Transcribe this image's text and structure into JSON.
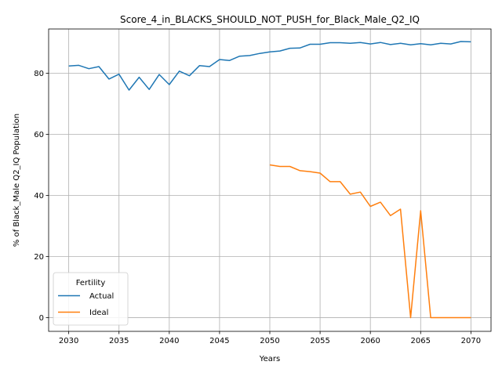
{
  "chart_data": {
    "type": "line",
    "title": "Score_4_in_BLACKS_SHOULD_NOT_PUSH_for_Black_Male_Q2_IQ",
    "xlabel": "Years",
    "ylabel": "% of Black_Male Q2_IQ Population",
    "xlim": [
      2028,
      2072
    ],
    "ylim": [
      -4.5,
      94.5
    ],
    "xticks": [
      2030,
      2035,
      2040,
      2045,
      2050,
      2055,
      2060,
      2065,
      2070
    ],
    "yticks": [
      0,
      20,
      40,
      60,
      80
    ],
    "grid": true,
    "legend": {
      "title": "Fertility",
      "position": "lower-left"
    },
    "series": [
      {
        "name": "Actual",
        "color": "#1f77b4",
        "x": [
          2030,
          2031,
          2032,
          2033,
          2034,
          2035,
          2036,
          2037,
          2038,
          2039,
          2040,
          2041,
          2042,
          2043,
          2044,
          2045,
          2046,
          2047,
          2048,
          2049,
          2050,
          2051,
          2052,
          2053,
          2054,
          2055,
          2056,
          2057,
          2058,
          2059,
          2060,
          2061,
          2062,
          2063,
          2064,
          2065,
          2066,
          2067,
          2068,
          2069,
          2070
        ],
        "values": [
          82.4,
          82.6,
          81.5,
          82.2,
          78.1,
          79.7,
          74.5,
          78.7,
          74.7,
          79.6,
          76.3,
          80.7,
          79.2,
          82.5,
          82.2,
          84.5,
          84.2,
          85.6,
          85.8,
          86.5,
          87.0,
          87.3,
          88.2,
          88.3,
          89.5,
          89.5,
          90.0,
          90.0,
          89.8,
          90.1,
          89.6,
          90.1,
          89.4,
          89.8,
          89.3,
          89.7,
          89.3,
          89.8,
          89.6,
          90.4,
          90.3
        ]
      },
      {
        "name": "Ideal",
        "color": "#ff7f0e",
        "x": [
          2050,
          2051,
          2052,
          2053,
          2054,
          2055,
          2056,
          2057,
          2058,
          2059,
          2060,
          2061,
          2062,
          2063,
          2064,
          2065,
          2066,
          2067,
          2068,
          2069,
          2070
        ],
        "values": [
          50.0,
          49.5,
          49.5,
          48.1,
          47.8,
          47.3,
          44.5,
          44.5,
          40.4,
          41.1,
          36.4,
          37.8,
          33.4,
          35.5,
          0.0,
          35.0,
          0.0,
          0.0,
          0.0,
          0.0,
          0.0
        ]
      }
    ]
  }
}
